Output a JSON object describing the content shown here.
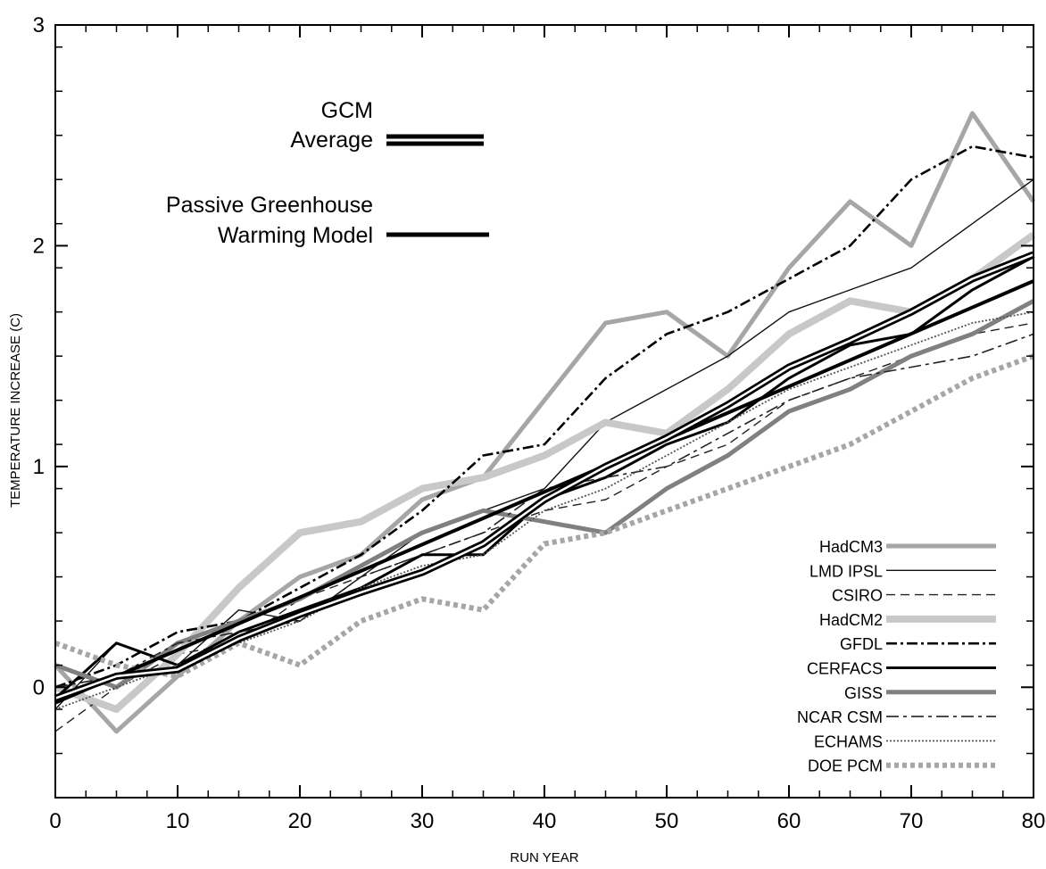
{
  "chart_data": {
    "type": "line",
    "title": "",
    "xlabel": "RUN YEAR",
    "ylabel": "TEMPERATURE INCREASE (C)",
    "xlim": [
      0,
      80
    ],
    "ylim": [
      -0.5,
      3
    ],
    "x_ticks": [
      "0",
      "10",
      "20",
      "30",
      "40",
      "50",
      "60",
      "70",
      "80"
    ],
    "y_ticks": [
      "0",
      "1",
      "2",
      "3"
    ],
    "grid": false,
    "legend_position": "bottom-right",
    "inset_legend": {
      "gcm_line1": "GCM",
      "gcm_line2": "Average",
      "passive_line1": "Passive Greenhouse",
      "passive_line2": "Warming Model"
    },
    "gcm_average": {
      "name": "GCM Average",
      "x": [
        0,
        5,
        10,
        15,
        20,
        25,
        30,
        35,
        40,
        45,
        50,
        55,
        60,
        65,
        70,
        75,
        80
      ],
      "values": [
        -0.05,
        0.05,
        0.08,
        0.22,
        0.33,
        0.43,
        0.52,
        0.65,
        0.85,
        1.0,
        1.13,
        1.28,
        1.45,
        1.57,
        1.7,
        1.85,
        1.96
      ]
    },
    "passive_model": {
      "name": "Passive Greenhouse Warming Model",
      "x": [
        0,
        80
      ],
      "values": [
        -0.07,
        1.84
      ]
    },
    "series": [
      {
        "name": "HadCM3",
        "color": "#a6a6a6",
        "x": [
          0,
          5,
          10,
          15,
          20,
          25,
          30,
          35,
          40,
          45,
          50,
          55,
          60,
          65,
          70,
          75,
          80
        ],
        "values": [
          0.1,
          -0.2,
          0.05,
          0.3,
          0.5,
          0.6,
          0.85,
          0.95,
          1.3,
          1.65,
          1.7,
          1.5,
          1.9,
          2.2,
          2.0,
          2.6,
          2.2
        ]
      },
      {
        "name": "LMD IPSL",
        "color": "#000000",
        "x": [
          0,
          5,
          10,
          15,
          20,
          25,
          30,
          35,
          40,
          45,
          50,
          55,
          60,
          65,
          70,
          75,
          80
        ],
        "values": [
          -0.1,
          0.2,
          0.1,
          0.35,
          0.3,
          0.5,
          0.7,
          0.8,
          0.9,
          1.2,
          1.35,
          1.5,
          1.7,
          1.8,
          1.9,
          2.1,
          2.3
        ]
      },
      {
        "name": "CSIRO",
        "color": "#000000",
        "x": [
          0,
          5,
          10,
          15,
          20,
          25,
          30,
          35,
          40,
          45,
          50,
          55,
          60,
          65,
          70,
          75,
          80
        ],
        "values": [
          -0.2,
          0.0,
          0.15,
          0.2,
          0.4,
          0.5,
          0.6,
          0.7,
          0.8,
          0.85,
          1.0,
          1.1,
          1.3,
          1.4,
          1.5,
          1.6,
          1.65
        ]
      },
      {
        "name": "HadCM2",
        "color": "#c8c8c8",
        "x": [
          0,
          5,
          10,
          15,
          20,
          25,
          30,
          35,
          40,
          45,
          50,
          55,
          60,
          65,
          70,
          75,
          80
        ],
        "values": [
          0.0,
          -0.1,
          0.15,
          0.45,
          0.7,
          0.75,
          0.9,
          0.95,
          1.05,
          1.2,
          1.15,
          1.35,
          1.6,
          1.75,
          1.7,
          1.85,
          2.05
        ]
      },
      {
        "name": "GFDL",
        "color": "#000000",
        "x": [
          0,
          5,
          10,
          15,
          20,
          25,
          30,
          35,
          40,
          45,
          50,
          55,
          60,
          65,
          70,
          75,
          80
        ],
        "values": [
          0.0,
          0.1,
          0.25,
          0.3,
          0.45,
          0.6,
          0.8,
          1.05,
          1.1,
          1.4,
          1.6,
          1.7,
          1.85,
          2.0,
          2.3,
          2.45,
          2.4
        ]
      },
      {
        "name": "CERFACS",
        "color": "#000000",
        "x": [
          0,
          5,
          10,
          15,
          20,
          25,
          30,
          35,
          40,
          45,
          50,
          55,
          60,
          65,
          70,
          75,
          80
        ],
        "values": [
          -0.05,
          0.2,
          0.1,
          0.25,
          0.35,
          0.45,
          0.6,
          0.6,
          0.85,
          0.95,
          1.1,
          1.2,
          1.4,
          1.55,
          1.6,
          1.8,
          1.95
        ]
      },
      {
        "name": "GISS",
        "color": "#808080",
        "x": [
          0,
          5,
          10,
          15,
          20,
          25,
          30,
          35,
          40,
          45,
          50,
          55,
          60,
          65,
          70,
          75,
          80
        ],
        "values": [
          0.1,
          0.0,
          0.2,
          0.3,
          0.4,
          0.55,
          0.7,
          0.8,
          0.75,
          0.7,
          0.9,
          1.05,
          1.25,
          1.35,
          1.5,
          1.6,
          1.75
        ]
      },
      {
        "name": "NCAR CSM",
        "color": "#000000",
        "x": [
          0,
          5,
          10,
          15,
          20,
          25,
          30,
          35,
          40,
          45,
          50,
          55,
          60,
          65,
          70,
          75,
          80
        ],
        "values": [
          0.0,
          0.05,
          0.2,
          0.25,
          0.3,
          0.5,
          0.6,
          0.7,
          0.9,
          0.95,
          1.0,
          1.15,
          1.3,
          1.4,
          1.45,
          1.5,
          1.6
        ]
      },
      {
        "name": "ECHAMS",
        "color": "#555555",
        "x": [
          0,
          5,
          10,
          15,
          20,
          25,
          30,
          35,
          40,
          45,
          50,
          55,
          60,
          65,
          70,
          75,
          80
        ],
        "values": [
          -0.1,
          0.0,
          0.1,
          0.2,
          0.3,
          0.45,
          0.55,
          0.6,
          0.8,
          0.9,
          1.05,
          1.2,
          1.35,
          1.45,
          1.55,
          1.65,
          1.7
        ]
      },
      {
        "name": "DOE PCM",
        "color": "#a6a6a6",
        "x": [
          0,
          5,
          10,
          15,
          20,
          25,
          30,
          35,
          40,
          45,
          50,
          55,
          60,
          65,
          70,
          75,
          80
        ],
        "values": [
          0.2,
          0.1,
          0.05,
          0.2,
          0.1,
          0.3,
          0.4,
          0.35,
          0.65,
          0.7,
          0.8,
          0.9,
          1.0,
          1.1,
          1.25,
          1.4,
          1.5
        ]
      }
    ]
  }
}
